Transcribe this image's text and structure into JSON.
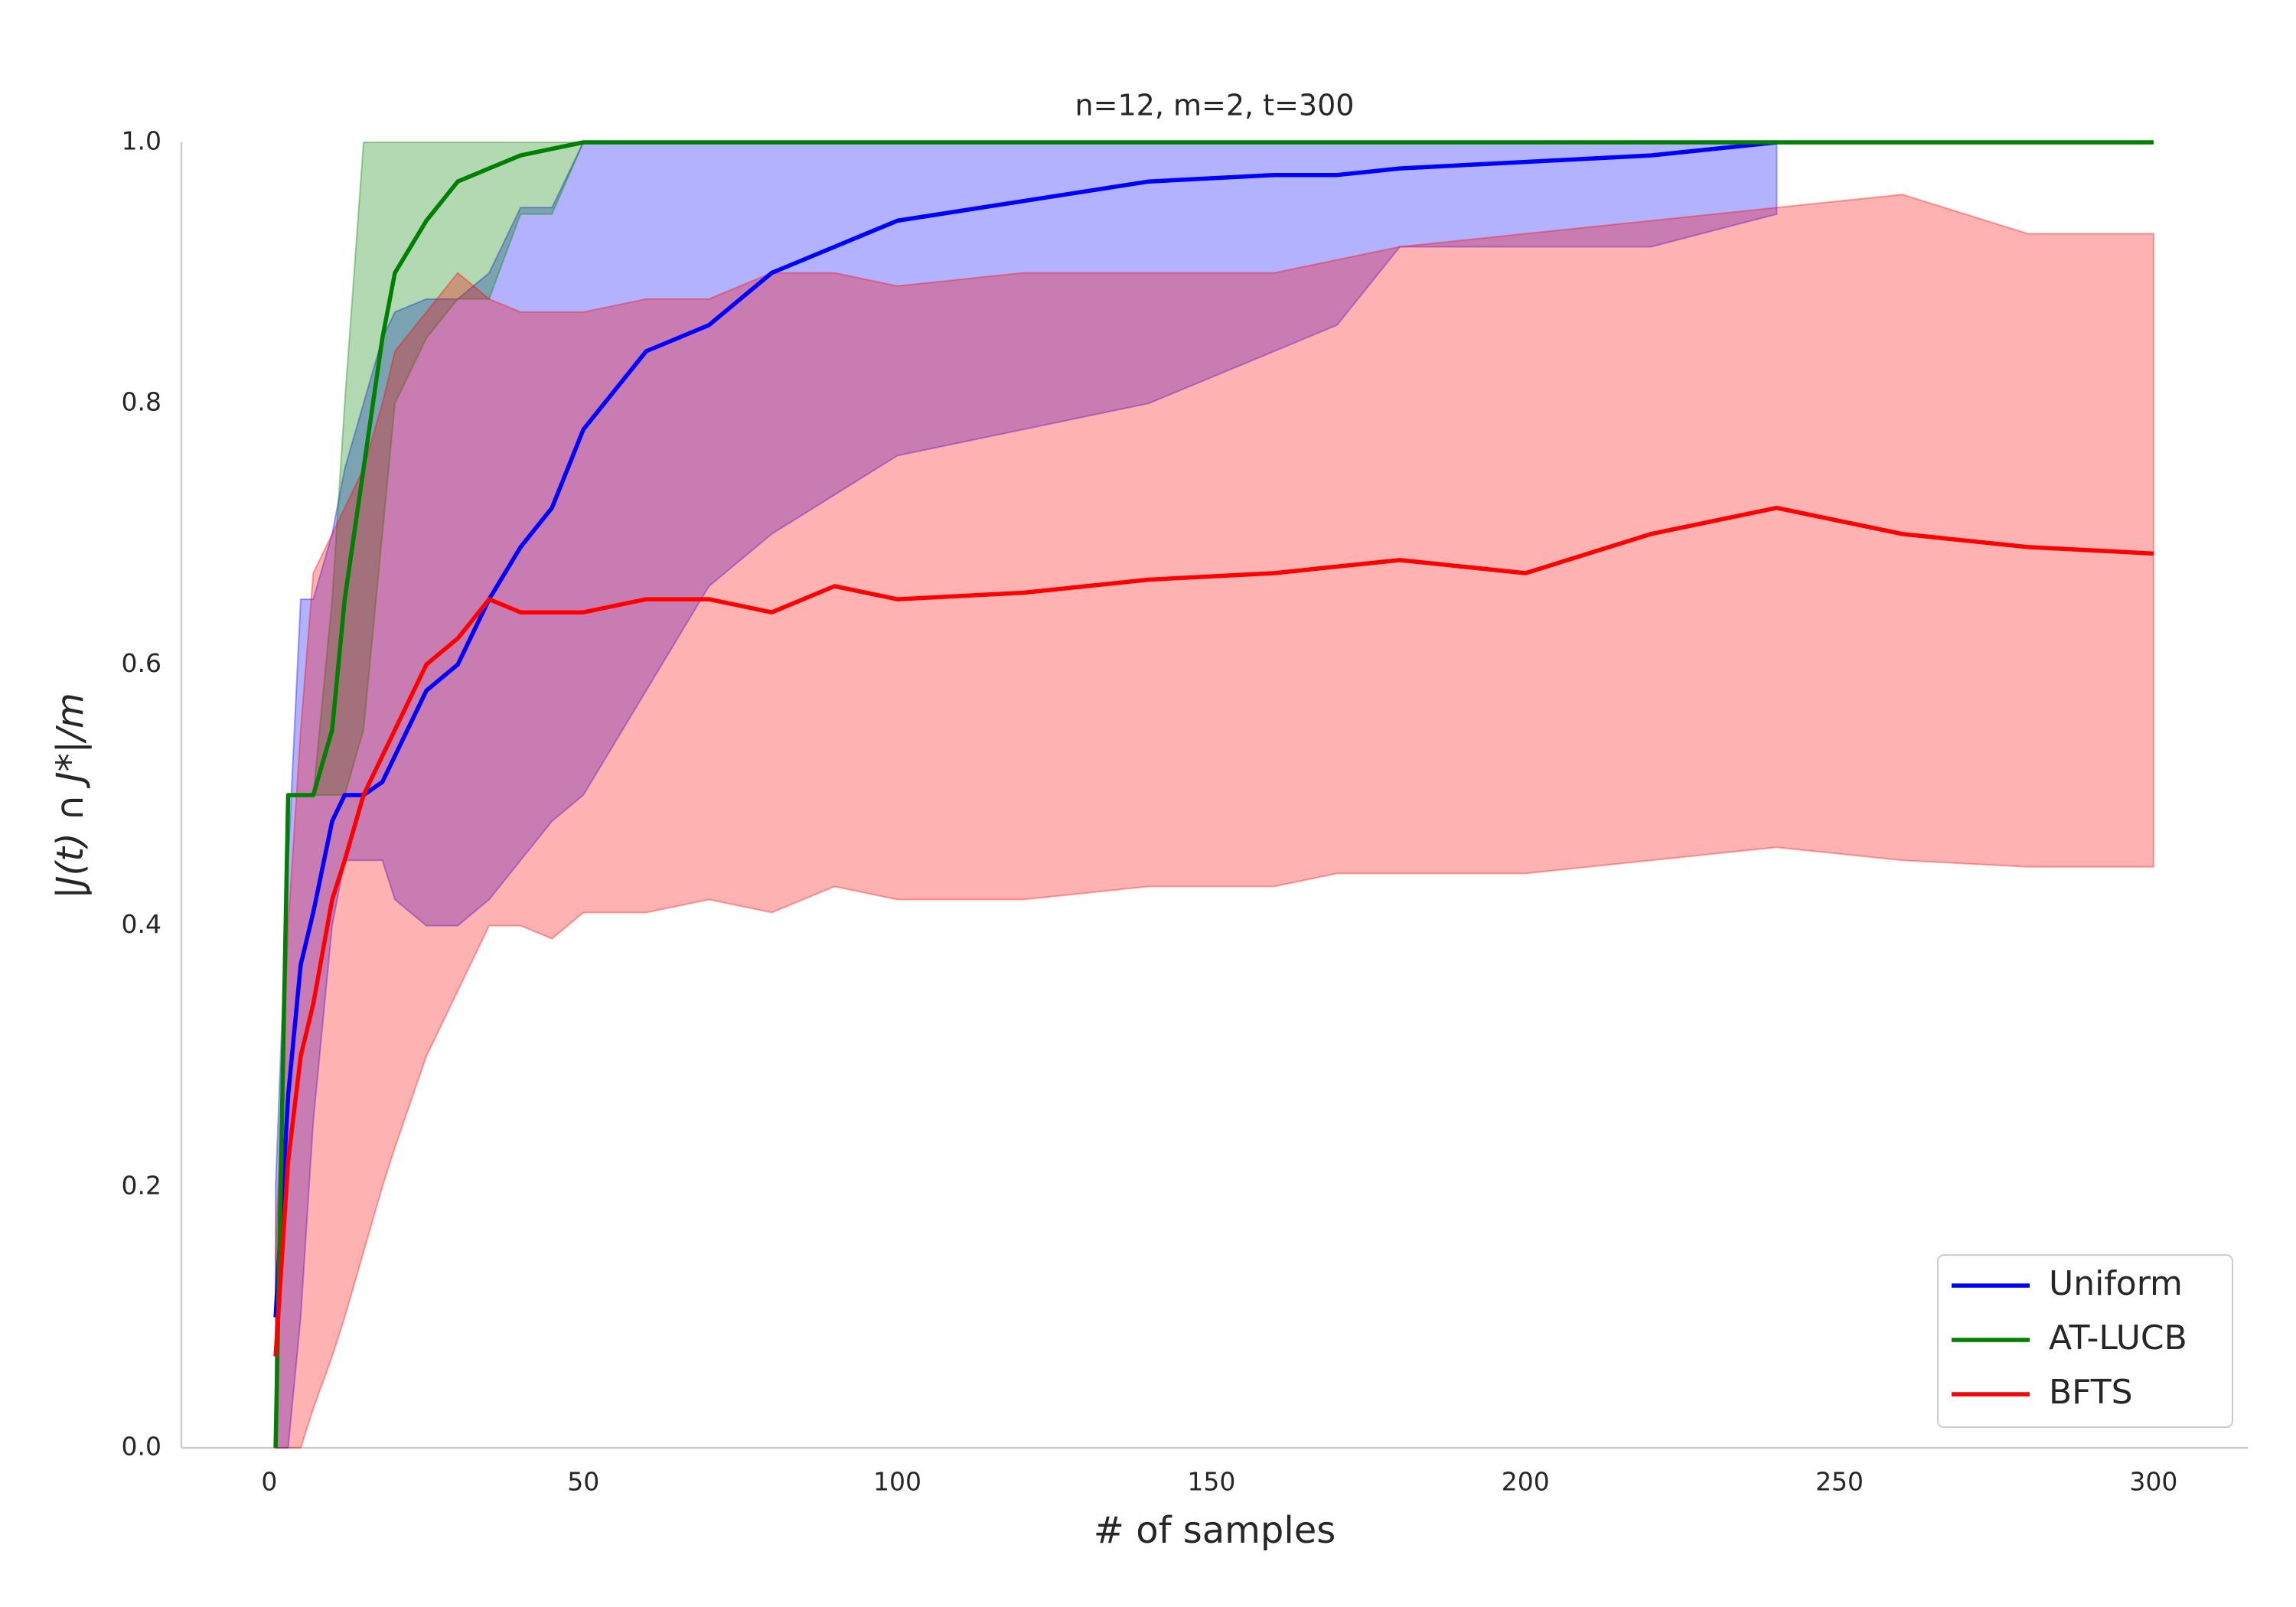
{
  "chart_data": {
    "type": "line",
    "title": "n=12, m=2, t=300",
    "xlabel": "# of samples",
    "ylabel": "|J(t) ∩ J*|/m",
    "x": [
      1,
      3,
      5,
      7,
      10,
      12,
      15,
      18,
      20,
      25,
      30,
      35,
      40,
      45,
      50,
      60,
      70,
      80,
      90,
      100,
      120,
      140,
      160,
      170,
      180,
      200,
      220,
      240,
      260,
      280,
      300
    ],
    "series": [
      {
        "name": "Uniform",
        "color": "#0000ff",
        "values": [
          0.1,
          0.27,
          0.37,
          0.41,
          0.48,
          0.5,
          0.5,
          0.51,
          0.53,
          0.58,
          0.6,
          0.65,
          0.69,
          0.72,
          0.78,
          0.84,
          0.86,
          0.9,
          0.92,
          0.94,
          0.955,
          0.97,
          0.975,
          0.975,
          0.98,
          0.985,
          0.99,
          1.0,
          null,
          null,
          null
        ],
        "lower": [
          0.0,
          0.0,
          0.1,
          0.25,
          0.4,
          0.45,
          0.45,
          0.45,
          0.42,
          0.4,
          0.4,
          0.42,
          0.45,
          0.48,
          0.5,
          0.58,
          0.66,
          0.7,
          0.73,
          0.76,
          0.78,
          0.8,
          0.84,
          0.86,
          0.92,
          0.92,
          0.92,
          0.945,
          null,
          null,
          null
        ],
        "upper": [
          0.2,
          0.45,
          0.65,
          0.65,
          0.7,
          0.75,
          0.8,
          0.85,
          0.87,
          0.88,
          0.88,
          0.9,
          0.95,
          0.95,
          1.0,
          1.0,
          1.0,
          1.0,
          1.0,
          1.0,
          1.0,
          1.0,
          1.0,
          1.0,
          1.0,
          1.0,
          1.0,
          1.0,
          null,
          null,
          null
        ]
      },
      {
        "name": "AT-LUCB",
        "color": "#008000",
        "values": [
          0.0,
          0.5,
          0.5,
          0.5,
          0.55,
          0.65,
          0.75,
          0.85,
          0.9,
          0.94,
          0.97,
          0.98,
          0.99,
          0.995,
          1.0,
          1.0,
          1.0,
          1.0,
          1.0,
          1.0,
          1.0,
          1.0,
          1.0,
          1.0,
          1.0,
          1.0,
          1.0,
          1.0,
          1.0,
          1.0,
          1.0
        ],
        "lower": [
          0.0,
          0.5,
          0.5,
          0.5,
          0.5,
          0.5,
          0.55,
          0.7,
          0.8,
          0.85,
          0.88,
          0.88,
          0.945,
          0.945,
          1.0,
          1.0,
          1.0,
          1.0,
          1.0,
          1.0,
          1.0,
          1.0,
          1.0,
          1.0,
          1.0,
          1.0,
          1.0,
          1.0,
          1.0,
          1.0,
          1.0
        ],
        "upper": [
          0.0,
          0.5,
          0.5,
          0.5,
          0.65,
          0.8,
          1.0,
          1.0,
          1.0,
          1.0,
          1.0,
          1.0,
          1.0,
          1.0,
          1.0,
          1.0,
          1.0,
          1.0,
          1.0,
          1.0,
          1.0,
          1.0,
          1.0,
          1.0,
          1.0,
          1.0,
          1.0,
          1.0,
          1.0,
          1.0,
          1.0
        ]
      },
      {
        "name": "BFTS",
        "color": "#ff0000",
        "values": [
          0.07,
          0.22,
          0.3,
          0.34,
          0.42,
          0.45,
          0.5,
          0.53,
          0.55,
          0.6,
          0.62,
          0.65,
          0.64,
          0.64,
          0.64,
          0.65,
          0.65,
          0.64,
          0.66,
          0.65,
          0.655,
          0.665,
          0.67,
          0.675,
          0.68,
          0.67,
          0.7,
          0.72,
          0.7,
          0.69,
          0.685
        ],
        "lower": [
          0.0,
          0.0,
          0.0,
          0.03,
          0.07,
          0.1,
          0.15,
          0.2,
          0.23,
          0.3,
          0.35,
          0.4,
          0.4,
          0.39,
          0.41,
          0.41,
          0.42,
          0.41,
          0.43,
          0.42,
          0.42,
          0.43,
          0.43,
          0.44,
          0.44,
          0.44,
          0.45,
          0.46,
          0.45,
          0.445,
          0.445
        ],
        "upper": [
          0.15,
          0.4,
          0.55,
          0.67,
          0.7,
          0.72,
          0.75,
          0.8,
          0.84,
          0.87,
          0.9,
          0.88,
          0.87,
          0.87,
          0.87,
          0.88,
          0.88,
          0.9,
          0.9,
          0.89,
          0.9,
          0.9,
          0.9,
          0.91,
          0.92,
          0.93,
          0.94,
          0.95,
          0.96,
          0.93,
          0.93
        ]
      }
    ],
    "band_opacity": 0.3,
    "xlim": [
      -14,
      315
    ],
    "ylim": [
      0,
      1
    ],
    "xticks": [
      0,
      50,
      100,
      150,
      200,
      250,
      300
    ],
    "yticks": [
      {
        "value": 0,
        "label": "0.0"
      },
      0.2,
      0.4,
      0.6,
      0.8,
      {
        "value": 1,
        "label": "1.0"
      }
    ],
    "grid": false,
    "legend": "lower right"
  }
}
